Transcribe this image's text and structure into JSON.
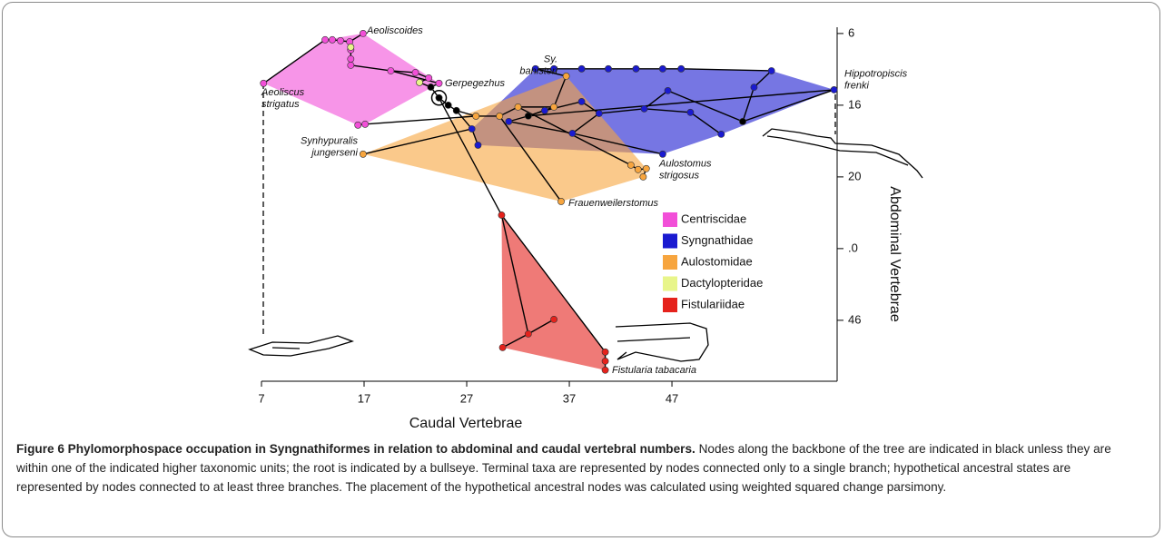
{
  "chart_data": {
    "type": "phylomorphospace",
    "xlabel": "Caudal Vertebrae",
    "ylabel": "Abdominal Vertebrae",
    "xlim": [
      7,
      63.1
    ],
    "ylim": [
      11.65,
      31.4
    ],
    "y_inverted": true,
    "xticks": [
      7,
      17,
      27,
      37,
      47
    ],
    "yticks": [
      {
        "value": 12,
        "label": "6"
      },
      16,
      20,
      {
        "value": 24,
        "label": ".0"
      },
      {
        "value": 28,
        "label": "46"
      }
    ],
    "series": [
      {
        "name": "Centriscidae",
        "color": "#f24fd8",
        "x": [
          16.9,
          13.2,
          13.9,
          14.7,
          15.6,
          15.7,
          15.7,
          15.7,
          19.6,
          22.0,
          23.3,
          24.3,
          7.2,
          16.4,
          17.1
        ],
        "y": [
          12.0,
          12.35,
          12.35,
          12.4,
          12.46,
          12.91,
          13.42,
          13.77,
          14.08,
          14.18,
          14.48,
          14.78,
          14.78,
          17.11,
          17.06
        ]
      },
      {
        "name": "Syngnathidae",
        "color": "#1a1ad0",
        "x": [
          33.7,
          35.5,
          38.2,
          40.8,
          43.5,
          46.1,
          47.9,
          62.8,
          56.7,
          55.0,
          46.6,
          38.2,
          34.6,
          27.5,
          28.1,
          37.3,
          46.1,
          51.8,
          44.3,
          48.8,
          39.9,
          31.1
        ],
        "y": [
          13.97,
          13.97,
          13.97,
          13.97,
          13.97,
          13.97,
          13.97,
          15.14,
          14.08,
          15.0,
          15.19,
          15.8,
          16.3,
          17.32,
          18.23,
          17.57,
          18.73,
          17.62,
          16.2,
          16.4,
          16.46,
          16.91
        ]
      },
      {
        "name": "Aulostomidae",
        "color": "#f7a53e",
        "x": [
          36.7,
          16.9,
          36.2,
          43.0,
          43.7,
          44.5,
          44.2,
          27.9,
          30.2,
          32.0,
          35.5
        ],
        "y": [
          14.38,
          18.73,
          21.37,
          19.34,
          19.59,
          19.54,
          20.0,
          16.61,
          16.61,
          16.1,
          16.1
        ]
      },
      {
        "name": "Dactylopteridae",
        "color": "#e8f58a",
        "x": [
          15.7,
          22.4
        ],
        "y": [
          12.76,
          14.73
        ]
      },
      {
        "name": "Fistulariidae",
        "color": "#e5221c",
        "x": [
          30.4,
          30.5,
          33.0,
          35.5,
          40.5,
          40.5,
          40.5
        ],
        "y": [
          22.13,
          29.52,
          28.76,
          27.95,
          29.77,
          30.28,
          30.78
        ]
      },
      {
        "color": "#000000",
        "x": [
          23.5,
          24.3,
          25.2,
          26.0,
          33.0,
          53.9
        ],
        "y": [
          14.99,
          15.59,
          16.0,
          16.3,
          16.6,
          16.91
        ]
      }
    ],
    "edges": [
      [
        [
          5,
          1
        ],
        [
          5,
          0
        ]
      ],
      [
        [
          5,
          0
        ],
        [
          0,
          11
        ]
      ],
      [
        [
          5,
          0
        ],
        [
          3,
          1
        ]
      ],
      [
        [
          3,
          1
        ],
        [
          0,
          10
        ]
      ],
      [
        [
          0,
          10
        ],
        [
          0,
          9
        ]
      ],
      [
        [
          0,
          9
        ],
        [
          0,
          8
        ]
      ],
      [
        [
          0,
          8
        ],
        [
          0,
          7
        ]
      ],
      [
        [
          0,
          7
        ],
        [
          0,
          6
        ]
      ],
      [
        [
          0,
          6
        ],
        [
          0,
          5
        ]
      ],
      [
        [
          0,
          5
        ],
        [
          3,
          0
        ]
      ],
      [
        [
          3,
          0
        ],
        [
          0,
          4
        ]
      ],
      [
        [
          0,
          4
        ],
        [
          0,
          3
        ]
      ],
      [
        [
          0,
          3
        ],
        [
          0,
          2
        ]
      ],
      [
        [
          0,
          2
        ],
        [
          0,
          1
        ]
      ],
      [
        [
          0,
          4
        ],
        [
          0,
          0
        ]
      ],
      [
        [
          0,
          1
        ],
        [
          0,
          12
        ]
      ],
      [
        [
          0,
          8
        ],
        [
          0,
          11
        ]
      ],
      [
        [
          0,
          13
        ],
        [
          0,
          14
        ]
      ],
      [
        [
          0,
          14
        ],
        [
          2,
          7
        ]
      ],
      [
        [
          5,
          1
        ],
        [
          5,
          2
        ]
      ],
      [
        [
          5,
          2
        ],
        [
          5,
          3
        ]
      ],
      [
        [
          5,
          3
        ],
        [
          2,
          7
        ]
      ],
      [
        [
          2,
          7
        ],
        [
          2,
          8
        ]
      ],
      [
        [
          2,
          8
        ],
        [
          2,
          9
        ]
      ],
      [
        [
          2,
          9
        ],
        [
          2,
          10
        ]
      ],
      [
        [
          2,
          10
        ],
        [
          5,
          4
        ]
      ],
      [
        [
          2,
          8
        ],
        [
          2,
          2
        ]
      ],
      [
        [
          2,
          9
        ],
        [
          2,
          3
        ]
      ],
      [
        [
          2,
          3
        ],
        [
          2,
          4
        ]
      ],
      [
        [
          2,
          4
        ],
        [
          2,
          5
        ]
      ],
      [
        [
          2,
          5
        ],
        [
          2,
          6
        ]
      ],
      [
        [
          2,
          10
        ],
        [
          2,
          0
        ]
      ],
      [
        [
          2,
          0
        ],
        [
          1,
          0
        ]
      ],
      [
        [
          1,
          13
        ],
        [
          2,
          1
        ]
      ],
      [
        [
          1,
          13
        ],
        [
          5,
          3
        ]
      ],
      [
        [
          1,
          13
        ],
        [
          1,
          14
        ]
      ],
      [
        [
          1,
          0
        ],
        [
          1,
          1
        ]
      ],
      [
        [
          1,
          1
        ],
        [
          1,
          2
        ]
      ],
      [
        [
          1,
          2
        ],
        [
          1,
          3
        ]
      ],
      [
        [
          1,
          3
        ],
        [
          1,
          4
        ]
      ],
      [
        [
          1,
          4
        ],
        [
          1,
          5
        ]
      ],
      [
        [
          1,
          5
        ],
        [
          1,
          6
        ]
      ],
      [
        [
          1,
          6
        ],
        [
          1,
          8
        ]
      ],
      [
        [
          5,
          4
        ],
        [
          1,
          7
        ]
      ],
      [
        [
          5,
          4
        ],
        [
          1,
          12
        ]
      ],
      [
        [
          1,
          12
        ],
        [
          1,
          11
        ]
      ],
      [
        [
          1,
          11
        ],
        [
          1,
          20
        ]
      ],
      [
        [
          1,
          20
        ],
        [
          1,
          18
        ]
      ],
      [
        [
          1,
          18
        ],
        [
          1,
          10
        ]
      ],
      [
        [
          1,
          10
        ],
        [
          5,
          5
        ]
      ],
      [
        [
          5,
          5
        ],
        [
          1,
          9
        ]
      ],
      [
        [
          1,
          9
        ],
        [
          1,
          8
        ]
      ],
      [
        [
          5,
          5
        ],
        [
          1,
          7
        ]
      ],
      [
        [
          1,
          20
        ],
        [
          1,
          15
        ]
      ],
      [
        [
          1,
          15
        ],
        [
          1,
          16
        ]
      ],
      [
        [
          1,
          18
        ],
        [
          1,
          19
        ]
      ],
      [
        [
          1,
          19
        ],
        [
          1,
          17
        ]
      ],
      [
        [
          5,
          4
        ],
        [
          1,
          21
        ]
      ],
      [
        [
          1,
          21
        ],
        [
          1,
          15
        ]
      ],
      [
        [
          5,
          1
        ],
        [
          4,
          0
        ]
      ],
      [
        [
          4,
          0
        ],
        [
          4,
          2
        ]
      ],
      [
        [
          4,
          2
        ],
        [
          4,
          1
        ]
      ],
      [
        [
          4,
          2
        ],
        [
          4,
          3
        ]
      ],
      [
        [
          4,
          0
        ],
        [
          4,
          4
        ]
      ],
      [
        [
          4,
          4
        ],
        [
          4,
          5
        ]
      ],
      [
        [
          4,
          5
        ],
        [
          4,
          6
        ]
      ]
    ],
    "root": [
      5,
      1
    ],
    "annotations": [
      [
        "Aeoliscoides"
      ],
      [
        "Aeoliscus",
        "strigatus"
      ],
      [
        "Gerpegezhus"
      ],
      [
        "Sy.",
        "banisteri"
      ],
      [
        "Hippotropiscis",
        "frenki"
      ],
      [
        "Synhypuralis",
        "jungerseni"
      ],
      [
        "Aulostomus",
        "strigosus"
      ],
      [
        "Frauenweilerstomus"
      ],
      [
        "Fistularia tabacaria"
      ]
    ]
  },
  "caption": {
    "label": "Figure 6 Phylomorphospace occupation in Syngnathiformes in relation to abdominal and caudal vertebral numbers.",
    "text": "Nodes along the backbone of the tree are indicated in black unless they are within one of the indicated higher taxonomic units; the root is indicated by a bullseye. Terminal taxa are represented by nodes connected only to a single branch; hypothetical ancestral states are represented by nodes connected to at least three branches. The placement of the hypothetical ancestral nodes was calculated using weighted squared change parsimony."
  }
}
